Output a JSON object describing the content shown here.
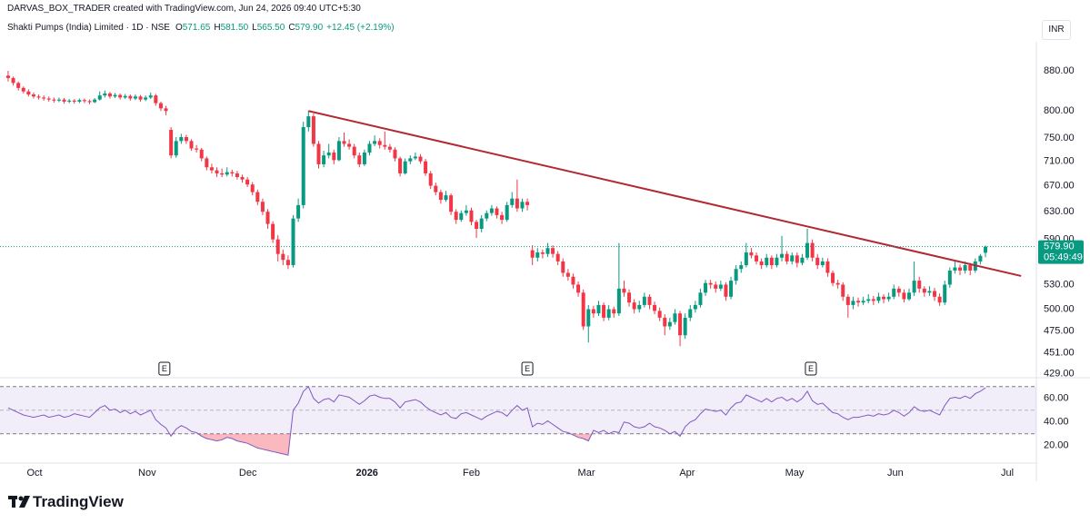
{
  "header": {
    "credit": "DARVAS_BOX_TRADER created with TradingView.com, Jun 24, 2026 09:40 UTC+5:30",
    "symbol": "Shakti Pumps (India) Limited · 1D · NSE",
    "ohlc_legend": [
      {
        "label": "O",
        "value": "571.65"
      },
      {
        "label": "H",
        "value": "581.50"
      },
      {
        "label": "L",
        "value": "565.50"
      },
      {
        "label": "C",
        "value": "579.90"
      }
    ],
    "change": "+12.45 (+2.19%)",
    "currency": "INR"
  },
  "chart_data": {
    "type": "candlestick",
    "log_scale": true,
    "grid": false,
    "up_color": "#089981",
    "down_color": "#f23645",
    "xlim": [
      -1.6,
      202
    ],
    "ylim": [
      425,
      955
    ],
    "xticks": [
      {
        "value": 5.2,
        "label": "Oct"
      },
      {
        "value": 27.3,
        "label": "Nov"
      },
      {
        "value": 47.1,
        "label": "Dec"
      },
      {
        "value": 70.5,
        "label": "2026"
      },
      {
        "value": 91,
        "label": "Feb"
      },
      {
        "value": 113.6,
        "label": "Mar"
      },
      {
        "value": 133.4,
        "label": "Apr"
      },
      {
        "value": 154.5,
        "label": "May"
      },
      {
        "value": 174.3,
        "label": "Jun"
      },
      {
        "value": 196.3,
        "label": "Jul"
      }
    ],
    "yticks": [
      {
        "value": 880,
        "label": "880.00"
      },
      {
        "value": 800,
        "label": "800.00"
      },
      {
        "value": 750,
        "label": "750.00"
      },
      {
        "value": 710,
        "label": "710.00"
      },
      {
        "value": 670,
        "label": "670.00"
      },
      {
        "value": 630,
        "label": "630.00"
      },
      {
        "value": 590,
        "label": "590.00"
      },
      {
        "value": 530,
        "label": "530.00"
      },
      {
        "value": 500,
        "label": "500.00"
      },
      {
        "value": 475,
        "label": "475.00"
      },
      {
        "value": 451,
        "label": "451.00"
      },
      {
        "value": 429,
        "label": "429.00"
      }
    ],
    "ohlc": [
      [
        870,
        880,
        858,
        865
      ],
      [
        865,
        868,
        850,
        855
      ],
      [
        855,
        858,
        840,
        845
      ],
      [
        845,
        848,
        834,
        838
      ],
      [
        838,
        842,
        828,
        832
      ],
      [
        832,
        836,
        824,
        828
      ],
      [
        828,
        832,
        822,
        826
      ],
      [
        826,
        830,
        820,
        824
      ],
      [
        824,
        828,
        818,
        822
      ],
      [
        822,
        826,
        816,
        820
      ],
      [
        820,
        826,
        817,
        822
      ],
      [
        822,
        825,
        814,
        818
      ],
      [
        818,
        823,
        815,
        820
      ],
      [
        820,
        823,
        814,
        818
      ],
      [
        818,
        824,
        815,
        821
      ],
      [
        821,
        824,
        815,
        819
      ],
      [
        819,
        822,
        813,
        817
      ],
      [
        817,
        825,
        815,
        822
      ],
      [
        822,
        838,
        820,
        830
      ],
      [
        830,
        840,
        826,
        834
      ],
      [
        834,
        837,
        824,
        828
      ],
      [
        828,
        835,
        825,
        831
      ],
      [
        831,
        834,
        822,
        826
      ],
      [
        826,
        833,
        823,
        829
      ],
      [
        829,
        832,
        820,
        824
      ],
      [
        824,
        832,
        821,
        828
      ],
      [
        828,
        831,
        818,
        822
      ],
      [
        822,
        830,
        819,
        826
      ],
      [
        826,
        836,
        823,
        830
      ],
      [
        830,
        833,
        810,
        815
      ],
      [
        815,
        818,
        800,
        805
      ],
      [
        805,
        810,
        792,
        800
      ],
      [
        765,
        770,
        715,
        720
      ],
      [
        720,
        752,
        716,
        745
      ],
      [
        745,
        758,
        740,
        752
      ],
      [
        752,
        756,
        740,
        745
      ],
      [
        745,
        748,
        728,
        732
      ],
      [
        732,
        738,
        725,
        730
      ],
      [
        730,
        733,
        710,
        715
      ],
      [
        715,
        718,
        695,
        700
      ],
      [
        700,
        706,
        690,
        695
      ],
      [
        695,
        700,
        684,
        690
      ],
      [
        690,
        698,
        684,
        688
      ],
      [
        688,
        700,
        685,
        692
      ],
      [
        692,
        696,
        685,
        690
      ],
      [
        690,
        694,
        680,
        684
      ],
      [
        684,
        688,
        675,
        680
      ],
      [
        680,
        684,
        668,
        672
      ],
      [
        672,
        676,
        655,
        660
      ],
      [
        660,
        664,
        640,
        645
      ],
      [
        645,
        650,
        625,
        630
      ],
      [
        630,
        634,
        605,
        612
      ],
      [
        612,
        616,
        585,
        590
      ],
      [
        590,
        596,
        560,
        570
      ],
      [
        570,
        576,
        555,
        562
      ],
      [
        562,
        568,
        550,
        555
      ],
      [
        555,
        625,
        552,
        620
      ],
      [
        620,
        650,
        615,
        640
      ],
      [
        640,
        780,
        635,
        770
      ],
      [
        770,
        800,
        762,
        790
      ],
      [
        790,
        795,
        735,
        740
      ],
      [
        740,
        745,
        698,
        705
      ],
      [
        705,
        728,
        700,
        720
      ],
      [
        720,
        740,
        715,
        725
      ],
      [
        725,
        730,
        705,
        712
      ],
      [
        712,
        752,
        710,
        745
      ],
      [
        745,
        760,
        735,
        740
      ],
      [
        740,
        748,
        730,
        735
      ],
      [
        735,
        740,
        715,
        720
      ],
      [
        720,
        725,
        700,
        705
      ],
      [
        705,
        730,
        702,
        725
      ],
      [
        725,
        745,
        720,
        740
      ],
      [
        740,
        755,
        736,
        745
      ],
      [
        745,
        750,
        732,
        738
      ],
      [
        738,
        762,
        730,
        735
      ],
      [
        735,
        740,
        725,
        730
      ],
      [
        730,
        734,
        710,
        715
      ],
      [
        715,
        718,
        685,
        690
      ],
      [
        690,
        715,
        688,
        710
      ],
      [
        710,
        720,
        705,
        715
      ],
      [
        715,
        725,
        712,
        718
      ],
      [
        718,
        722,
        706,
        710
      ],
      [
        710,
        714,
        686,
        690
      ],
      [
        690,
        694,
        665,
        670
      ],
      [
        670,
        675,
        655,
        660
      ],
      [
        660,
        664,
        642,
        648
      ],
      [
        648,
        662,
        645,
        655
      ],
      [
        655,
        658,
        625,
        630
      ],
      [
        630,
        634,
        612,
        618
      ],
      [
        618,
        632,
        615,
        628
      ],
      [
        628,
        640,
        624,
        632
      ],
      [
        632,
        636,
        610,
        615
      ],
      [
        615,
        618,
        592,
        605
      ],
      [
        605,
        625,
        600,
        620
      ],
      [
        620,
        632,
        616,
        628
      ],
      [
        628,
        640,
        624,
        635
      ],
      [
        635,
        638,
        620,
        625
      ],
      [
        625,
        630,
        612,
        618
      ],
      [
        618,
        645,
        615,
        640
      ],
      [
        640,
        660,
        636,
        650
      ],
      [
        650,
        680,
        630,
        635
      ],
      [
        635,
        650,
        630,
        645
      ],
      [
        645,
        650,
        632,
        640
      ],
      [
        575,
        582,
        555,
        565
      ],
      [
        565,
        578,
        560,
        572
      ],
      [
        572,
        576,
        564,
        570
      ],
      [
        570,
        585,
        566,
        578
      ],
      [
        578,
        582,
        565,
        570
      ],
      [
        570,
        574,
        555,
        560
      ],
      [
        560,
        564,
        540,
        545
      ],
      [
        545,
        550,
        535,
        540
      ],
      [
        540,
        544,
        525,
        530
      ],
      [
        530,
        534,
        515,
        520
      ],
      [
        520,
        524,
        476,
        480
      ],
      [
        480,
        505,
        462,
        500
      ],
      [
        500,
        504,
        490,
        495
      ],
      [
        495,
        510,
        492,
        505
      ],
      [
        505,
        508,
        486,
        490
      ],
      [
        490,
        505,
        487,
        500
      ],
      [
        500,
        503,
        490,
        495
      ],
      [
        495,
        585,
        492,
        525
      ],
      [
        525,
        535,
        515,
        520
      ],
      [
        520,
        524,
        503,
        508
      ],
      [
        508,
        512,
        495,
        500
      ],
      [
        500,
        510,
        496,
        505
      ],
      [
        505,
        520,
        502,
        515
      ],
      [
        515,
        518,
        500,
        505
      ],
      [
        505,
        509,
        494,
        498
      ],
      [
        498,
        502,
        486,
        490
      ],
      [
        490,
        494,
        470,
        480
      ],
      [
        480,
        490,
        476,
        485
      ],
      [
        485,
        500,
        482,
        495
      ],
      [
        495,
        498,
        458,
        470
      ],
      [
        470,
        495,
        466,
        490
      ],
      [
        490,
        505,
        486,
        500
      ],
      [
        500,
        510,
        496,
        505
      ],
      [
        505,
        525,
        502,
        520
      ],
      [
        520,
        536,
        516,
        532
      ],
      [
        532,
        536,
        525,
        530
      ],
      [
        530,
        534,
        520,
        525
      ],
      [
        525,
        535,
        522,
        530
      ],
      [
        530,
        533,
        510,
        515
      ],
      [
        515,
        540,
        512,
        535
      ],
      [
        535,
        555,
        530,
        550
      ],
      [
        550,
        560,
        545,
        555
      ],
      [
        555,
        585,
        552,
        572
      ],
      [
        572,
        578,
        564,
        568
      ],
      [
        568,
        572,
        556,
        560
      ],
      [
        560,
        564,
        550,
        555
      ],
      [
        555,
        570,
        552,
        565
      ],
      [
        565,
        568,
        550,
        555
      ],
      [
        555,
        570,
        552,
        565
      ],
      [
        565,
        595,
        560,
        570
      ],
      [
        570,
        574,
        556,
        560
      ],
      [
        560,
        572,
        556,
        568
      ],
      [
        568,
        572,
        552,
        558
      ],
      [
        558,
        570,
        555,
        565
      ],
      [
        565,
        605,
        562,
        585
      ],
      [
        585,
        590,
        560,
        565
      ],
      [
        565,
        570,
        550,
        555
      ],
      [
        555,
        565,
        552,
        560
      ],
      [
        560,
        564,
        540,
        545
      ],
      [
        545,
        548,
        528,
        532
      ],
      [
        532,
        536,
        525,
        530
      ],
      [
        530,
        533,
        510,
        515
      ],
      [
        515,
        518,
        490,
        505
      ],
      [
        505,
        515,
        500,
        510
      ],
      [
        510,
        514,
        503,
        508
      ],
      [
        508,
        515,
        505,
        510
      ],
      [
        510,
        518,
        507,
        512
      ],
      [
        512,
        516,
        505,
        510
      ],
      [
        510,
        520,
        507,
        515
      ],
      [
        515,
        518,
        507,
        512
      ],
      [
        512,
        520,
        509,
        515
      ],
      [
        515,
        530,
        512,
        525
      ],
      [
        525,
        528,
        515,
        520
      ],
      [
        520,
        524,
        508,
        512
      ],
      [
        512,
        525,
        510,
        520
      ],
      [
        520,
        560,
        516,
        535
      ],
      [
        535,
        540,
        520,
        525
      ],
      [
        525,
        528,
        515,
        520
      ],
      [
        520,
        528,
        516,
        522
      ],
      [
        522,
        526,
        510,
        515
      ],
      [
        515,
        519,
        504,
        508
      ],
      [
        508,
        535,
        505,
        530
      ],
      [
        530,
        552,
        526,
        548
      ],
      [
        548,
        560,
        544,
        552
      ],
      [
        552,
        556,
        542,
        548
      ],
      [
        548,
        560,
        544,
        555
      ],
      [
        555,
        558,
        542,
        548
      ],
      [
        548,
        564,
        545,
        560
      ],
      [
        560,
        570,
        556,
        567.45
      ],
      [
        571.65,
        581.5,
        565.5,
        579.9
      ]
    ],
    "trendline": {
      "color": "#b22833",
      "points": [
        [
          59,
          800
        ],
        [
          199,
          541
        ]
      ]
    },
    "last_price": {
      "value": 579.9,
      "label": "579.90"
    },
    "countdown": "05:49:49",
    "events": [
      {
        "x": 30.7,
        "label": "E"
      },
      {
        "x": 102,
        "label": "E"
      },
      {
        "x": 157.7,
        "label": "E"
      }
    ],
    "rsi": {
      "color": "#7e57c2",
      "ylim": [
        6,
        76
      ],
      "bands": [
        30,
        70
      ],
      "midline": 50,
      "yticks": [
        {
          "value": 60,
          "label": "60.00"
        },
        {
          "value": 40,
          "label": "40.00"
        },
        {
          "value": 20,
          "label": "20.00"
        }
      ],
      "values": [
        52,
        50,
        48,
        46,
        45,
        44,
        45,
        46,
        44,
        45,
        46,
        44,
        45,
        47,
        46,
        45,
        44,
        48,
        52,
        54,
        50,
        51,
        48,
        50,
        47,
        49,
        46,
        48,
        50,
        42,
        38,
        35,
        28,
        34,
        37,
        35,
        32,
        31,
        28,
        26,
        25,
        24,
        25,
        27,
        26,
        24,
        23,
        22,
        20,
        18,
        17,
        16,
        15,
        14,
        13,
        12,
        50,
        56,
        66,
        70,
        60,
        56,
        59,
        60,
        57,
        63,
        62,
        61,
        58,
        55,
        58,
        62,
        63,
        61,
        60,
        60,
        57,
        52,
        57,
        58,
        59,
        57,
        53,
        50,
        48,
        46,
        48,
        44,
        43,
        47,
        48,
        46,
        44,
        42,
        45,
        47,
        49,
        48,
        45,
        50,
        54,
        50,
        52,
        36,
        39,
        38,
        41,
        38,
        35,
        32,
        31,
        29,
        27,
        26,
        24,
        33,
        31,
        33,
        30,
        32,
        31,
        40,
        39,
        36,
        35,
        36,
        39,
        36,
        35,
        33,
        30,
        32,
        28,
        36,
        40,
        42,
        47,
        51,
        50,
        49,
        50,
        46,
        52,
        56,
        57,
        63,
        61,
        59,
        57,
        60,
        57,
        60,
        61,
        58,
        60,
        57,
        60,
        66,
        58,
        55,
        56,
        52,
        48,
        47,
        44,
        42,
        44,
        44,
        45,
        46,
        45,
        47,
        46,
        47,
        50,
        48,
        45,
        48,
        53,
        50,
        49,
        50,
        48,
        46,
        54,
        60,
        61,
        60,
        62,
        60,
        64,
        66,
        69
      ]
    }
  },
  "footer": {
    "brand": "TradingView"
  }
}
